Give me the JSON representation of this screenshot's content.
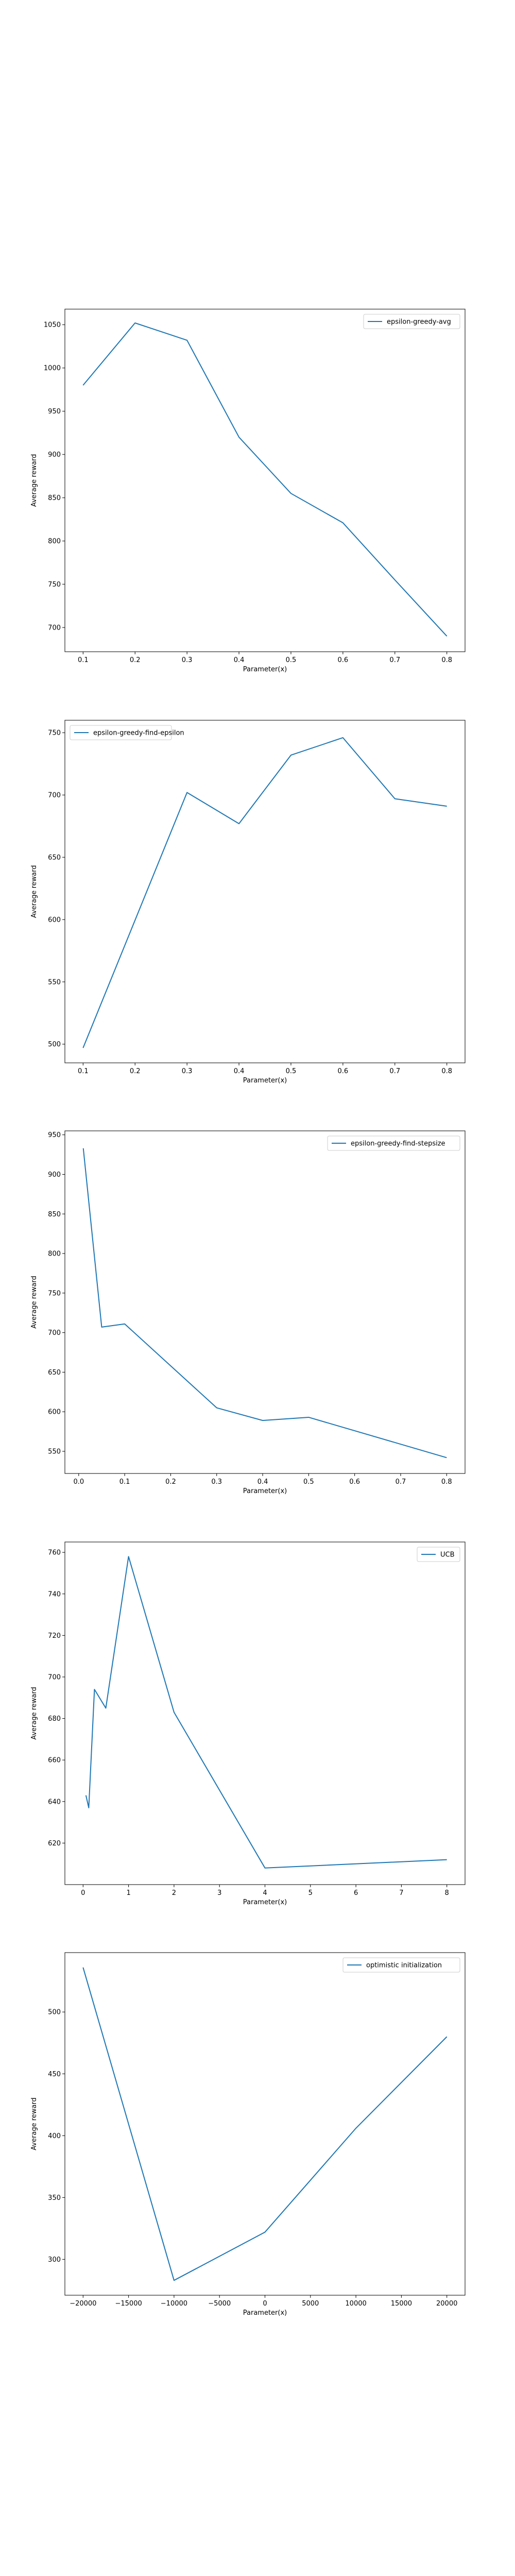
{
  "chart_data": [
    {
      "type": "line",
      "xlabel": "Parameter(x)",
      "ylabel": "Average reward",
      "xlim": [
        0.065,
        0.835
      ],
      "ylim": [
        672,
        1068
      ],
      "xticks": [
        0.1,
        0.2,
        0.3,
        0.4,
        0.5,
        0.6,
        0.7,
        0.8
      ],
      "xtick_labels": [
        "0.1",
        "0.2",
        "0.3",
        "0.4",
        "0.5",
        "0.6",
        "0.7",
        "0.8"
      ],
      "yticks": [
        700,
        750,
        800,
        850,
        900,
        950,
        1000,
        1050
      ],
      "ytick_labels": [
        "700",
        "750",
        "800",
        "850",
        "900",
        "950",
        "1000",
        "1050"
      ],
      "legend_position": "top-right",
      "series": [
        {
          "name": "epsilon-greedy-avg",
          "color": "#1f77b4",
          "x": [
            0.1,
            0.2,
            0.3,
            0.4,
            0.5,
            0.6,
            0.7,
            0.8
          ],
          "y": [
            980,
            1052,
            1032,
            920,
            855,
            821,
            755,
            690
          ]
        }
      ]
    },
    {
      "type": "line",
      "xlabel": "Parameter(x)",
      "ylabel": "Average reward",
      "xlim": [
        0.065,
        0.835
      ],
      "ylim": [
        485,
        760
      ],
      "xticks": [
        0.1,
        0.2,
        0.3,
        0.4,
        0.5,
        0.6,
        0.7,
        0.8
      ],
      "xtick_labels": [
        "0.1",
        "0.2",
        "0.3",
        "0.4",
        "0.5",
        "0.6",
        "0.7",
        "0.8"
      ],
      "yticks": [
        500,
        550,
        600,
        650,
        700,
        750
      ],
      "ytick_labels": [
        "500",
        "550",
        "600",
        "650",
        "700",
        "750"
      ],
      "legend_position": "top-left",
      "series": [
        {
          "name": "epsilon-greedy-find-epsilon",
          "color": "#1f77b4",
          "x": [
            0.1,
            0.3,
            0.4,
            0.5,
            0.6,
            0.7,
            0.8
          ],
          "y": [
            497,
            702,
            677,
            732,
            746,
            697,
            691
          ]
        }
      ]
    },
    {
      "type": "line",
      "xlabel": "Parameter(x)",
      "ylabel": "Average reward",
      "xlim": [
        -0.03,
        0.84
      ],
      "ylim": [
        522,
        955
      ],
      "xticks": [
        0.0,
        0.1,
        0.2,
        0.3,
        0.4,
        0.5,
        0.6,
        0.7,
        0.8
      ],
      "xtick_labels": [
        "0.0",
        "0.1",
        "0.2",
        "0.3",
        "0.4",
        "0.5",
        "0.6",
        "0.7",
        "0.8"
      ],
      "yticks": [
        550,
        600,
        650,
        700,
        750,
        800,
        850,
        900,
        950
      ],
      "ytick_labels": [
        "550",
        "600",
        "650",
        "700",
        "750",
        "800",
        "850",
        "900",
        "950"
      ],
      "legend_position": "top-right",
      "series": [
        {
          "name": "epsilon-greedy-find-stepsize",
          "color": "#1f77b4",
          "x": [
            0.01,
            0.05,
            0.1,
            0.3,
            0.4,
            0.5,
            0.8
          ],
          "y": [
            933,
            707,
            711,
            605,
            589,
            593,
            542
          ]
        }
      ]
    },
    {
      "type": "line",
      "xlabel": "Parameter(x)",
      "ylabel": "Average reward",
      "xlim": [
        -0.4,
        8.4
      ],
      "ylim": [
        600,
        765
      ],
      "xticks": [
        0,
        1,
        2,
        3,
        4,
        5,
        6,
        7,
        8
      ],
      "xtick_labels": [
        "0",
        "1",
        "2",
        "3",
        "4",
        "5",
        "6",
        "7",
        "8"
      ],
      "yticks": [
        620,
        640,
        660,
        680,
        700,
        720,
        740,
        760
      ],
      "ytick_labels": [
        "620",
        "640",
        "660",
        "680",
        "700",
        "720",
        "740",
        "760"
      ],
      "legend_position": "top-right",
      "series": [
        {
          "name": "UCB",
          "color": "#1f77b4",
          "x": [
            0.0625,
            0.125,
            0.25,
            0.5,
            1,
            2,
            4,
            8
          ],
          "y": [
            643,
            637,
            694,
            685,
            758,
            683,
            608,
            612
          ]
        }
      ]
    },
    {
      "type": "line",
      "xlabel": "Parameter(x)",
      "ylabel": "Average reward",
      "xlim": [
        -22000,
        22000
      ],
      "ylim": [
        271,
        548
      ],
      "xticks": [
        -20000,
        -15000,
        -10000,
        -5000,
        0,
        5000,
        10000,
        15000,
        20000
      ],
      "xtick_labels": [
        "−20000",
        "−15000",
        "−10000",
        "−5000",
        "0",
        "5000",
        "10000",
        "15000",
        "20000"
      ],
      "yticks": [
        300,
        350,
        400,
        450,
        500
      ],
      "ytick_labels": [
        "300",
        "350",
        "400",
        "450",
        "500"
      ],
      "legend_position": "top-right",
      "series": [
        {
          "name": "optimistic initialization",
          "color": "#1f77b4",
          "x": [
            -20000,
            -10000,
            0,
            10000,
            20000
          ],
          "y": [
            536,
            283,
            322,
            406,
            480
          ]
        }
      ]
    }
  ]
}
